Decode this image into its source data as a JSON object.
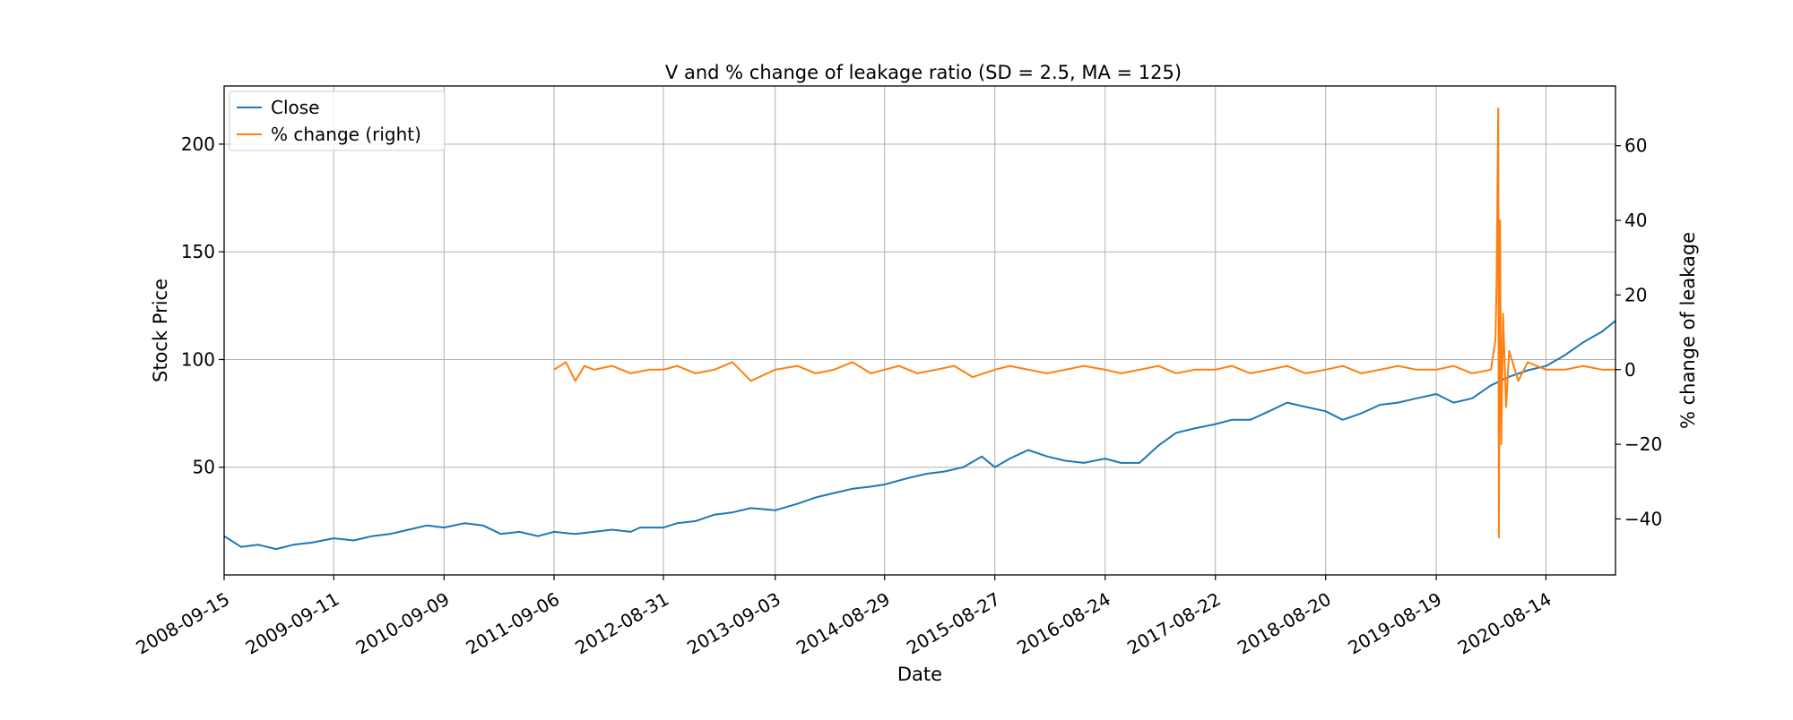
{
  "chart_data": {
    "type": "line",
    "title": "V and % change of leakage ratio (SD = 2.5, MA = 125)",
    "xlabel": "Date",
    "ylabel": "Stock Price",
    "y2label": "% change of leakage",
    "grid": true,
    "legend_position": "top-left",
    "x_ticks": [
      "2008-09-15",
      "2009-09-11",
      "2010-09-09",
      "2011-09-06",
      "2012-08-31",
      "2013-09-03",
      "2014-08-29",
      "2015-08-27",
      "2016-08-24",
      "2017-08-22",
      "2018-08-20",
      "2019-08-19",
      "2020-08-14"
    ],
    "xlim": [
      "2008-09-15",
      "2021-03-31"
    ],
    "y_ticks": [
      50,
      100,
      150,
      200
    ],
    "ylim": [
      0,
      227
    ],
    "y2_ticks": [
      -40,
      -20,
      0,
      20,
      40,
      60
    ],
    "y2lim": [
      -55,
      76
    ],
    "series": [
      {
        "name": "Close",
        "axis": "left",
        "color": "#1f77b4",
        "points": [
          [
            "2008-09-15",
            18
          ],
          [
            "2008-11-10",
            13
          ],
          [
            "2009-01-05",
            14
          ],
          [
            "2009-03-05",
            12
          ],
          [
            "2009-05-01",
            14
          ],
          [
            "2009-07-01",
            15
          ],
          [
            "2009-09-11",
            17
          ],
          [
            "2009-11-15",
            16
          ],
          [
            "2010-01-15",
            18
          ],
          [
            "2010-03-15",
            19
          ],
          [
            "2010-05-15",
            21
          ],
          [
            "2010-07-15",
            23
          ],
          [
            "2010-09-09",
            22
          ],
          [
            "2010-11-15",
            24
          ],
          [
            "2011-01-15",
            23
          ],
          [
            "2011-03-15",
            19
          ],
          [
            "2011-05-15",
            20
          ],
          [
            "2011-07-15",
            18
          ],
          [
            "2011-09-06",
            20
          ],
          [
            "2011-11-15",
            19
          ],
          [
            "2012-01-15",
            20
          ],
          [
            "2012-03-15",
            21
          ],
          [
            "2012-05-15",
            20
          ],
          [
            "2012-06-15",
            22
          ],
          [
            "2012-08-31",
            22
          ],
          [
            "2012-10-15",
            24
          ],
          [
            "2012-12-15",
            25
          ],
          [
            "2013-02-15",
            28
          ],
          [
            "2013-04-15",
            29
          ],
          [
            "2013-06-15",
            31
          ],
          [
            "2013-09-03",
            30
          ],
          [
            "2013-11-15",
            33
          ],
          [
            "2014-01-15",
            36
          ],
          [
            "2014-03-15",
            38
          ],
          [
            "2014-05-15",
            40
          ],
          [
            "2014-07-15",
            41
          ],
          [
            "2014-08-29",
            42
          ],
          [
            "2014-11-15",
            45
          ],
          [
            "2015-01-15",
            47
          ],
          [
            "2015-03-15",
            48
          ],
          [
            "2015-05-15",
            50
          ],
          [
            "2015-07-15",
            55
          ],
          [
            "2015-08-27",
            50
          ],
          [
            "2015-10-15",
            54
          ],
          [
            "2015-12-15",
            58
          ],
          [
            "2016-02-15",
            55
          ],
          [
            "2016-04-15",
            53
          ],
          [
            "2016-06-15",
            52
          ],
          [
            "2016-08-24",
            54
          ],
          [
            "2016-10-15",
            52
          ],
          [
            "2016-12-15",
            52
          ],
          [
            "2017-02-15",
            60
          ],
          [
            "2017-04-15",
            66
          ],
          [
            "2017-06-15",
            68
          ],
          [
            "2017-08-22",
            70
          ],
          [
            "2017-10-15",
            72
          ],
          [
            "2017-12-15",
            72
          ],
          [
            "2018-02-15",
            76
          ],
          [
            "2018-04-15",
            80
          ],
          [
            "2018-06-15",
            78
          ],
          [
            "2018-08-20",
            76
          ],
          [
            "2018-10-15",
            72
          ],
          [
            "2018-12-15",
            75
          ],
          [
            "2019-02-15",
            79
          ],
          [
            "2019-04-15",
            80
          ],
          [
            "2019-06-15",
            82
          ],
          [
            "2019-08-19",
            84
          ],
          [
            "2019-10-15",
            80
          ],
          [
            "2019-12-15",
            82
          ],
          [
            "2020-02-15",
            88
          ],
          [
            "2020-04-15",
            92
          ],
          [
            "2020-06-15",
            95
          ],
          [
            "2020-08-14",
            97
          ],
          [
            "2020-10-15",
            102
          ],
          [
            "2020-12-15",
            108
          ],
          [
            "2021-02-15",
            113
          ],
          [
            "2021-03-31",
            118
          ]
        ]
      },
      {
        "name": "% change (right)",
        "axis": "right",
        "color": "#ff7f0e",
        "points": [
          [
            "2011-09-06",
            0
          ],
          [
            "2011-10-15",
            2
          ],
          [
            "2011-11-15",
            -3
          ],
          [
            "2011-12-15",
            1
          ],
          [
            "2012-01-15",
            0
          ],
          [
            "2012-03-15",
            1
          ],
          [
            "2012-05-15",
            -1
          ],
          [
            "2012-07-15",
            0
          ],
          [
            "2012-08-31",
            0
          ],
          [
            "2012-10-15",
            1
          ],
          [
            "2012-12-15",
            -1
          ],
          [
            "2013-02-15",
            0
          ],
          [
            "2013-04-15",
            2
          ],
          [
            "2013-06-15",
            -3
          ],
          [
            "2013-09-03",
            0
          ],
          [
            "2013-11-15",
            1
          ],
          [
            "2014-01-15",
            -1
          ],
          [
            "2014-03-15",
            0
          ],
          [
            "2014-05-15",
            2
          ],
          [
            "2014-07-15",
            -1
          ],
          [
            "2014-08-29",
            0
          ],
          [
            "2014-10-15",
            1
          ],
          [
            "2014-12-15",
            -1
          ],
          [
            "2015-02-15",
            0
          ],
          [
            "2015-04-15",
            1
          ],
          [
            "2015-06-15",
            -2
          ],
          [
            "2015-08-27",
            0
          ],
          [
            "2015-10-15",
            1
          ],
          [
            "2015-12-15",
            0
          ],
          [
            "2016-02-15",
            -1
          ],
          [
            "2016-04-15",
            0
          ],
          [
            "2016-06-15",
            1
          ],
          [
            "2016-08-24",
            0
          ],
          [
            "2016-10-15",
            -1
          ],
          [
            "2016-12-15",
            0
          ],
          [
            "2017-02-15",
            1
          ],
          [
            "2017-04-15",
            -1
          ],
          [
            "2017-06-15",
            0
          ],
          [
            "2017-08-22",
            0
          ],
          [
            "2017-10-15",
            1
          ],
          [
            "2017-12-15",
            -1
          ],
          [
            "2018-02-15",
            0
          ],
          [
            "2018-04-15",
            1
          ],
          [
            "2018-06-15",
            -1
          ],
          [
            "2018-08-20",
            0
          ],
          [
            "2018-10-15",
            1
          ],
          [
            "2018-12-15",
            -1
          ],
          [
            "2019-02-15",
            0
          ],
          [
            "2019-04-15",
            1
          ],
          [
            "2019-06-15",
            0
          ],
          [
            "2019-08-19",
            0
          ],
          [
            "2019-10-15",
            1
          ],
          [
            "2019-12-15",
            -1
          ],
          [
            "2020-02-15",
            0
          ],
          [
            "2020-03-01",
            8
          ],
          [
            "2020-03-05",
            25
          ],
          [
            "2020-03-10",
            70
          ],
          [
            "2020-03-12",
            -45
          ],
          [
            "2020-03-16",
            40
          ],
          [
            "2020-03-20",
            -20
          ],
          [
            "2020-03-26",
            15
          ],
          [
            "2020-04-05",
            -10
          ],
          [
            "2020-04-15",
            5
          ],
          [
            "2020-05-15",
            -3
          ],
          [
            "2020-06-15",
            2
          ],
          [
            "2020-08-14",
            0
          ],
          [
            "2020-10-15",
            0
          ],
          [
            "2020-12-15",
            1
          ],
          [
            "2021-02-15",
            0
          ],
          [
            "2021-03-31",
            0
          ]
        ]
      }
    ]
  }
}
